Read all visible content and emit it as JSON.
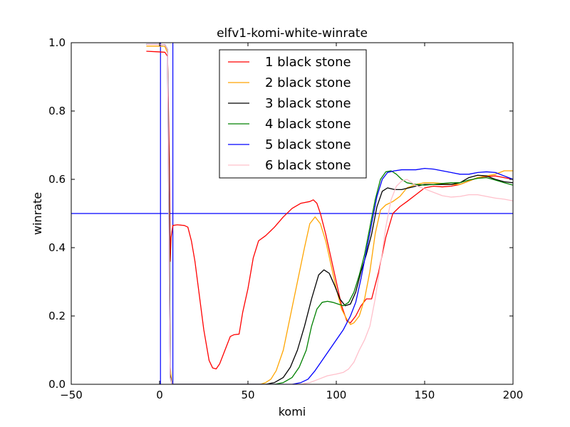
{
  "chart_data": {
    "type": "line",
    "title": "elfv1-komi-white-winrate",
    "xlabel": "komi",
    "ylabel": "winrate",
    "xlim": [
      -50,
      200
    ],
    "ylim": [
      0.0,
      1.0
    ],
    "xticks": [
      -50,
      0,
      50,
      100,
      150,
      200
    ],
    "xtick_labels": [
      "−50",
      "0",
      "50",
      "100",
      "150",
      "200"
    ],
    "yticks": [
      0.0,
      0.2,
      0.4,
      0.6,
      0.8,
      1.0
    ],
    "ytick_labels": [
      "0.0",
      "0.2",
      "0.4",
      "0.6",
      "0.8",
      "1.0"
    ],
    "grid": false,
    "legend_position": "top-center",
    "reference_lines": [
      {
        "orientation": "horizontal",
        "value": 0.5,
        "color": "#0000ff"
      },
      {
        "orientation": "vertical",
        "value": 0.5,
        "color": "#0000ff"
      },
      {
        "orientation": "vertical",
        "value": 7.5,
        "color": "#0000ff"
      }
    ],
    "series": [
      {
        "name": "1 black stone",
        "color": "#ff0000",
        "points": [
          [
            -7.5,
            0.975
          ],
          [
            0,
            0.973
          ],
          [
            3,
            0.972
          ],
          [
            4.5,
            0.96
          ],
          [
            5.5,
            0.66
          ],
          [
            6,
            0.36
          ],
          [
            6.5,
            0.43
          ],
          [
            7.5,
            0.465
          ],
          [
            10,
            0.467
          ],
          [
            14,
            0.465
          ],
          [
            16,
            0.46
          ],
          [
            18,
            0.42
          ],
          [
            20,
            0.36
          ],
          [
            22,
            0.28
          ],
          [
            25,
            0.16
          ],
          [
            28,
            0.07
          ],
          [
            30,
            0.048
          ],
          [
            32,
            0.045
          ],
          [
            34,
            0.06
          ],
          [
            37,
            0.1
          ],
          [
            40,
            0.14
          ],
          [
            42,
            0.145
          ],
          [
            45,
            0.147
          ],
          [
            47,
            0.21
          ],
          [
            50,
            0.28
          ],
          [
            53,
            0.37
          ],
          [
            56,
            0.42
          ],
          [
            60,
            0.435
          ],
          [
            65,
            0.46
          ],
          [
            70,
            0.49
          ],
          [
            75,
            0.515
          ],
          [
            80,
            0.53
          ],
          [
            85,
            0.535
          ],
          [
            87,
            0.54
          ],
          [
            89,
            0.53
          ],
          [
            91,
            0.5
          ],
          [
            94,
            0.44
          ],
          [
            97,
            0.37
          ],
          [
            100,
            0.3
          ],
          [
            103,
            0.23
          ],
          [
            106,
            0.185
          ],
          [
            108,
            0.18
          ],
          [
            111,
            0.2
          ],
          [
            114,
            0.23
          ],
          [
            117,
            0.25
          ],
          [
            120,
            0.25
          ],
          [
            124,
            0.33
          ],
          [
            128,
            0.43
          ],
          [
            132,
            0.5
          ],
          [
            136,
            0.52
          ],
          [
            140,
            0.535
          ],
          [
            145,
            0.555
          ],
          [
            150,
            0.575
          ],
          [
            155,
            0.58
          ],
          [
            160,
            0.578
          ],
          [
            165,
            0.58
          ],
          [
            170,
            0.585
          ],
          [
            175,
            0.595
          ],
          [
            180,
            0.605
          ],
          [
            185,
            0.608
          ],
          [
            190,
            0.61
          ],
          [
            195,
            0.605
          ],
          [
            200,
            0.6
          ]
        ]
      },
      {
        "name": "2 black stone",
        "color": "#ffa500",
        "points": [
          [
            -7.5,
            0.99
          ],
          [
            0,
            0.99
          ],
          [
            3,
            0.989
          ],
          [
            4.5,
            0.97
          ],
          [
            5.5,
            0.5
          ],
          [
            6,
            0.05
          ],
          [
            7,
            0.0
          ],
          [
            50,
            0.0
          ],
          [
            57,
            0.0
          ],
          [
            60,
            0.005
          ],
          [
            63,
            0.015
          ],
          [
            66,
            0.04
          ],
          [
            70,
            0.1
          ],
          [
            74,
            0.2
          ],
          [
            78,
            0.3
          ],
          [
            82,
            0.4
          ],
          [
            85,
            0.47
          ],
          [
            88,
            0.49
          ],
          [
            91,
            0.47
          ],
          [
            94,
            0.42
          ],
          [
            97,
            0.35
          ],
          [
            100,
            0.28
          ],
          [
            103,
            0.22
          ],
          [
            106,
            0.19
          ],
          [
            108,
            0.175
          ],
          [
            110,
            0.18
          ],
          [
            113,
            0.2
          ],
          [
            116,
            0.25
          ],
          [
            119,
            0.33
          ],
          [
            122,
            0.44
          ],
          [
            125,
            0.51
          ],
          [
            128,
            0.525
          ],
          [
            132,
            0.535
          ],
          [
            136,
            0.55
          ],
          [
            140,
            0.575
          ],
          [
            145,
            0.585
          ],
          [
            150,
            0.59
          ],
          [
            155,
            0.59
          ],
          [
            160,
            0.588
          ],
          [
            165,
            0.585
          ],
          [
            170,
            0.585
          ],
          [
            175,
            0.595
          ],
          [
            180,
            0.605
          ],
          [
            185,
            0.61
          ],
          [
            190,
            0.615
          ],
          [
            195,
            0.625
          ],
          [
            200,
            0.625
          ]
        ]
      },
      {
        "name": "3 black stone",
        "color": "#000000",
        "points": [
          [
            -7.5,
            0.995
          ],
          [
            0,
            0.995
          ],
          [
            3,
            0.994
          ],
          [
            4.5,
            0.98
          ],
          [
            5.5,
            0.5
          ],
          [
            6,
            0.03
          ],
          [
            7,
            0.0
          ],
          [
            60,
            0.0
          ],
          [
            65,
            0.005
          ],
          [
            70,
            0.02
          ],
          [
            74,
            0.05
          ],
          [
            78,
            0.1
          ],
          [
            82,
            0.17
          ],
          [
            86,
            0.25
          ],
          [
            90,
            0.32
          ],
          [
            93,
            0.335
          ],
          [
            96,
            0.325
          ],
          [
            99,
            0.29
          ],
          [
            102,
            0.25
          ],
          [
            105,
            0.23
          ],
          [
            108,
            0.235
          ],
          [
            111,
            0.27
          ],
          [
            114,
            0.33
          ],
          [
            117,
            0.38
          ],
          [
            120,
            0.44
          ],
          [
            123,
            0.52
          ],
          [
            126,
            0.565
          ],
          [
            129,
            0.575
          ],
          [
            133,
            0.57
          ],
          [
            137,
            0.57
          ],
          [
            141,
            0.575
          ],
          [
            145,
            0.58
          ],
          [
            150,
            0.585
          ],
          [
            155,
            0.585
          ],
          [
            160,
            0.585
          ],
          [
            165,
            0.585
          ],
          [
            170,
            0.59
          ],
          [
            175,
            0.605
          ],
          [
            180,
            0.612
          ],
          [
            185,
            0.61
          ],
          [
            190,
            0.6
          ],
          [
            195,
            0.593
          ],
          [
            200,
            0.59
          ]
        ]
      },
      {
        "name": "4 black stone",
        "color": "#008000",
        "points": [
          [
            -7.5,
            0.995
          ],
          [
            0,
            0.995
          ],
          [
            3,
            0.994
          ],
          [
            4.5,
            0.98
          ],
          [
            5.5,
            0.4
          ],
          [
            6,
            0.02
          ],
          [
            7,
            0.0
          ],
          [
            65,
            0.0
          ],
          [
            70,
            0.005
          ],
          [
            75,
            0.02
          ],
          [
            79,
            0.05
          ],
          [
            83,
            0.1
          ],
          [
            86,
            0.17
          ],
          [
            89,
            0.22
          ],
          [
            92,
            0.24
          ],
          [
            95,
            0.243
          ],
          [
            98,
            0.24
          ],
          [
            101,
            0.235
          ],
          [
            104,
            0.23
          ],
          [
            107,
            0.24
          ],
          [
            110,
            0.27
          ],
          [
            113,
            0.32
          ],
          [
            116,
            0.38
          ],
          [
            119,
            0.46
          ],
          [
            122,
            0.54
          ],
          [
            125,
            0.6
          ],
          [
            128,
            0.622
          ],
          [
            131,
            0.625
          ],
          [
            134,
            0.615
          ],
          [
            137,
            0.6
          ],
          [
            140,
            0.59
          ],
          [
            145,
            0.585
          ],
          [
            150,
            0.583
          ],
          [
            155,
            0.585
          ],
          [
            160,
            0.588
          ],
          [
            165,
            0.59
          ],
          [
            170,
            0.59
          ],
          [
            175,
            0.598
          ],
          [
            180,
            0.603
          ],
          [
            185,
            0.605
          ],
          [
            190,
            0.598
          ],
          [
            195,
            0.59
          ],
          [
            200,
            0.583
          ]
        ]
      },
      {
        "name": "5 black stone",
        "color": "#0000ff",
        "points": [
          [
            -7.5,
            0.995
          ],
          [
            0,
            0.995
          ],
          [
            3,
            0.994
          ],
          [
            4.5,
            0.98
          ],
          [
            5.5,
            0.3
          ],
          [
            6,
            0.02
          ],
          [
            7,
            0.0
          ],
          [
            75,
            0.0
          ],
          [
            80,
            0.005
          ],
          [
            84,
            0.015
          ],
          [
            88,
            0.04
          ],
          [
            92,
            0.07
          ],
          [
            96,
            0.1
          ],
          [
            100,
            0.13
          ],
          [
            104,
            0.16
          ],
          [
            108,
            0.2
          ],
          [
            111,
            0.24
          ],
          [
            114,
            0.31
          ],
          [
            117,
            0.39
          ],
          [
            120,
            0.47
          ],
          [
            123,
            0.55
          ],
          [
            126,
            0.6
          ],
          [
            129,
            0.62
          ],
          [
            133,
            0.625
          ],
          [
            137,
            0.628
          ],
          [
            141,
            0.628
          ],
          [
            145,
            0.628
          ],
          [
            150,
            0.632
          ],
          [
            155,
            0.63
          ],
          [
            160,
            0.625
          ],
          [
            165,
            0.62
          ],
          [
            170,
            0.615
          ],
          [
            175,
            0.615
          ],
          [
            180,
            0.62
          ],
          [
            185,
            0.622
          ],
          [
            190,
            0.62
          ],
          [
            195,
            0.61
          ],
          [
            200,
            0.6
          ]
        ]
      },
      {
        "name": "6 black stone",
        "color": "#ffc0cb",
        "points": [
          [
            -7.5,
            0.995
          ],
          [
            0,
            0.995
          ],
          [
            3,
            0.994
          ],
          [
            4.5,
            0.98
          ],
          [
            5.5,
            0.3
          ],
          [
            6,
            0.02
          ],
          [
            7,
            0.0
          ],
          [
            80,
            0.0
          ],
          [
            85,
            0.005
          ],
          [
            90,
            0.015
          ],
          [
            95,
            0.025
          ],
          [
            100,
            0.03
          ],
          [
            104,
            0.035
          ],
          [
            107,
            0.045
          ],
          [
            110,
            0.065
          ],
          [
            113,
            0.1
          ],
          [
            116,
            0.13
          ],
          [
            119,
            0.17
          ],
          [
            122,
            0.25
          ],
          [
            125,
            0.35
          ],
          [
            128,
            0.46
          ],
          [
            131,
            0.54
          ],
          [
            134,
            0.58
          ],
          [
            137,
            0.595
          ],
          [
            140,
            0.6
          ],
          [
            145,
            0.582
          ],
          [
            150,
            0.572
          ],
          [
            155,
            0.562
          ],
          [
            160,
            0.552
          ],
          [
            165,
            0.548
          ],
          [
            170,
            0.55
          ],
          [
            175,
            0.555
          ],
          [
            180,
            0.555
          ],
          [
            185,
            0.55
          ],
          [
            190,
            0.545
          ],
          [
            195,
            0.542
          ],
          [
            200,
            0.537
          ]
        ]
      }
    ]
  }
}
